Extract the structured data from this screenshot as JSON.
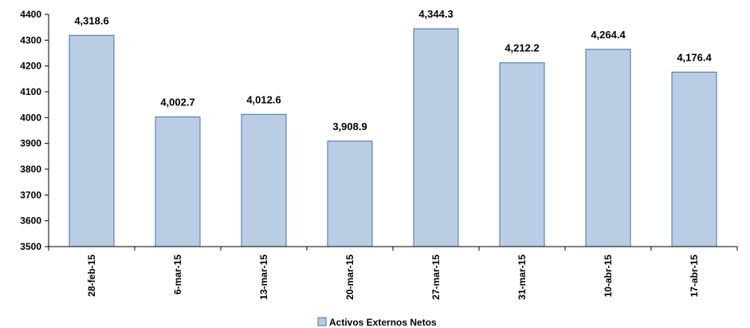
{
  "chart_data": {
    "type": "bar",
    "categories": [
      "28-feb-15",
      "6-mar-15",
      "13-mar-15",
      "20-mar-15",
      "27-mar-15",
      "31-mar-15",
      "10-abr-15",
      "17-abr-15"
    ],
    "series": [
      {
        "name": "Activos Externos Netos",
        "values": [
          4318.6,
          4002.7,
          4012.6,
          3908.9,
          4344.3,
          4212.2,
          4264.4,
          4176.4
        ],
        "labels": [
          "4,318.6",
          "4,002.7",
          "4,012.6",
          "3,908.9",
          "4,344.3",
          "4,212.2",
          "4,264.4",
          "4,176.4"
        ]
      }
    ],
    "ylim": [
      3500,
      4400
    ],
    "yticks": [
      "3500",
      "3600",
      "3700",
      "3800",
      "3900",
      "4000",
      "4100",
      "4200",
      "4300",
      "4400"
    ],
    "xlabel": "",
    "ylabel": "",
    "title": "",
    "grid": false,
    "legend_position": "bottom",
    "colors": {
      "bar_fill": "#b9cde5",
      "bar_stroke": "#4a6fa5",
      "axis": "#000000"
    }
  }
}
